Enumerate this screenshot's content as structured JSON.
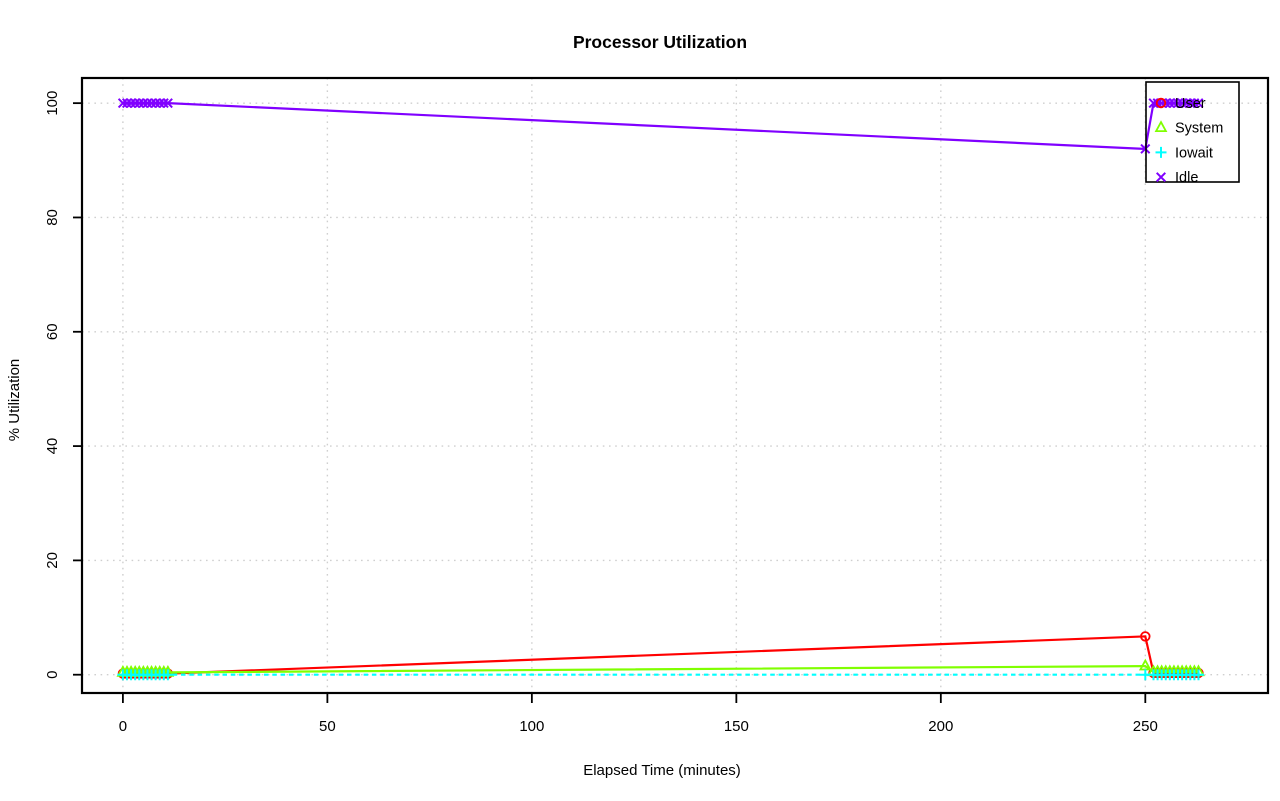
{
  "page": {
    "background": "#ffffff",
    "grid_color": "#cfcfcf",
    "axis_color": "#000000"
  },
  "chart_data": {
    "type": "line",
    "title": "Processor Utilization",
    "xlabel": "Elapsed Time (minutes)",
    "ylabel": "% Utilization",
    "xlim": [
      -10,
      280
    ],
    "ylim": [
      -3.2,
      104.4
    ],
    "xticks": [
      0,
      50,
      100,
      150,
      200,
      250
    ],
    "yticks": [
      0,
      20,
      40,
      60,
      80,
      100
    ],
    "grid": true,
    "grid_style": "dotted",
    "legend_position": "top-right",
    "series": [
      {
        "name": "User",
        "color": "#FF0000",
        "marker": "circle",
        "line_style": "solid",
        "points": [
          [
            0,
            0.2
          ],
          [
            1,
            0.2
          ],
          [
            2,
            0.2
          ],
          [
            3,
            0.2
          ],
          [
            4,
            0.2
          ],
          [
            5,
            0.2
          ],
          [
            6,
            0.2
          ],
          [
            7,
            0.2
          ],
          [
            8,
            0.2
          ],
          [
            9,
            0.2
          ],
          [
            10,
            0.2
          ],
          [
            11,
            0.2
          ],
          [
            250,
            6.7
          ],
          [
            252,
            0.3
          ],
          [
            253,
            0.3
          ],
          [
            254,
            0.3
          ],
          [
            255,
            0.3
          ],
          [
            256,
            0.3
          ],
          [
            257,
            0.3
          ],
          [
            258,
            0.3
          ],
          [
            259,
            0.3
          ],
          [
            260,
            0.3
          ],
          [
            261,
            0.3
          ],
          [
            262,
            0.3
          ],
          [
            263,
            0.3
          ]
        ]
      },
      {
        "name": "System",
        "color": "#80FF00",
        "marker": "triangle-up",
        "line_style": "solid",
        "points": [
          [
            0,
            0.4
          ],
          [
            1,
            0.4
          ],
          [
            2,
            0.4
          ],
          [
            3,
            0.4
          ],
          [
            4,
            0.4
          ],
          [
            5,
            0.4
          ],
          [
            6,
            0.4
          ],
          [
            7,
            0.4
          ],
          [
            8,
            0.4
          ],
          [
            9,
            0.4
          ],
          [
            10,
            0.4
          ],
          [
            11,
            0.4
          ],
          [
            250,
            1.5
          ],
          [
            252,
            0.5
          ],
          [
            253,
            0.5
          ],
          [
            254,
            0.5
          ],
          [
            255,
            0.5
          ],
          [
            256,
            0.5
          ],
          [
            257,
            0.5
          ],
          [
            258,
            0.5
          ],
          [
            259,
            0.5
          ],
          [
            260,
            0.5
          ],
          [
            261,
            0.5
          ],
          [
            262,
            0.5
          ],
          [
            263,
            0.5
          ]
        ]
      },
      {
        "name": "Iowait",
        "color": "#00FFFF",
        "marker": "plus",
        "line_style": "dashed",
        "points": [
          [
            0,
            0
          ],
          [
            1,
            0
          ],
          [
            2,
            0
          ],
          [
            3,
            0
          ],
          [
            4,
            0
          ],
          [
            5,
            0
          ],
          [
            6,
            0
          ],
          [
            7,
            0
          ],
          [
            8,
            0
          ],
          [
            9,
            0
          ],
          [
            10,
            0
          ],
          [
            11,
            0
          ],
          [
            250,
            0
          ],
          [
            252,
            0
          ],
          [
            253,
            0
          ],
          [
            254,
            0
          ],
          [
            255,
            0
          ],
          [
            256,
            0
          ],
          [
            257,
            0
          ],
          [
            258,
            0
          ],
          [
            259,
            0
          ],
          [
            260,
            0
          ],
          [
            261,
            0
          ],
          [
            262,
            0
          ],
          [
            263,
            0
          ]
        ]
      },
      {
        "name": "Idle",
        "color": "#8000FF",
        "marker": "x",
        "line_style": "solid",
        "points": [
          [
            0,
            100
          ],
          [
            1,
            100
          ],
          [
            2,
            100
          ],
          [
            3,
            100
          ],
          [
            4,
            100
          ],
          [
            5,
            100
          ],
          [
            6,
            100
          ],
          [
            7,
            100
          ],
          [
            8,
            100
          ],
          [
            9,
            100
          ],
          [
            10,
            100
          ],
          [
            11,
            100
          ],
          [
            250,
            92
          ],
          [
            252,
            100
          ],
          [
            253,
            100
          ],
          [
            254,
            100
          ],
          [
            255,
            100
          ],
          [
            256,
            100
          ],
          [
            257,
            100
          ],
          [
            258,
            100
          ],
          [
            259,
            100
          ],
          [
            260,
            100
          ],
          [
            261,
            100
          ],
          [
            262,
            100
          ],
          [
            263,
            100
          ]
        ]
      }
    ]
  }
}
